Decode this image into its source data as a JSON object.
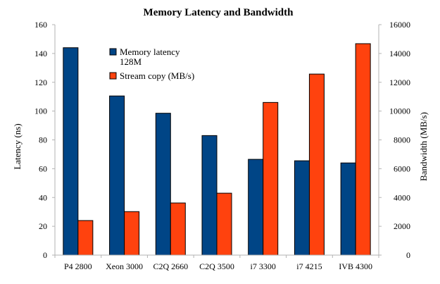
{
  "chart_data": {
    "type": "bar",
    "title": "Memory Latency and Bandwidth",
    "categories": [
      "P4 2800",
      "Xeon 3000",
      "C2Q 2660",
      "C2Q 3500",
      "i7 3300",
      "i7 4215",
      "IVB 4300"
    ],
    "series": [
      {
        "name": "Memory latency 128M",
        "name_lines": [
          "Memory latency",
          "128M"
        ],
        "axis": "left",
        "color": "#004586",
        "values": [
          144,
          110.5,
          98.5,
          83,
          66.5,
          65.5,
          64
        ]
      },
      {
        "name": "Stream copy (MB/s)",
        "name_lines": [
          "Stream copy (MB/s)"
        ],
        "axis": "right",
        "color": "#ff420e",
        "values": [
          2400,
          3020,
          3620,
          4300,
          10600,
          12570,
          14680
        ]
      }
    ],
    "ylabel": "Latency (ns)",
    "ylim": [
      0,
      160
    ],
    "yticks": [
      0,
      20,
      40,
      60,
      80,
      100,
      120,
      140,
      160
    ],
    "y2label": "Bandwidth (MB/s)",
    "y2lim": [
      0,
      16000
    ],
    "y2ticks": [
      0,
      2000,
      4000,
      6000,
      8000,
      10000,
      12000,
      14000,
      16000
    ],
    "grid": false,
    "legend": "top-left"
  }
}
